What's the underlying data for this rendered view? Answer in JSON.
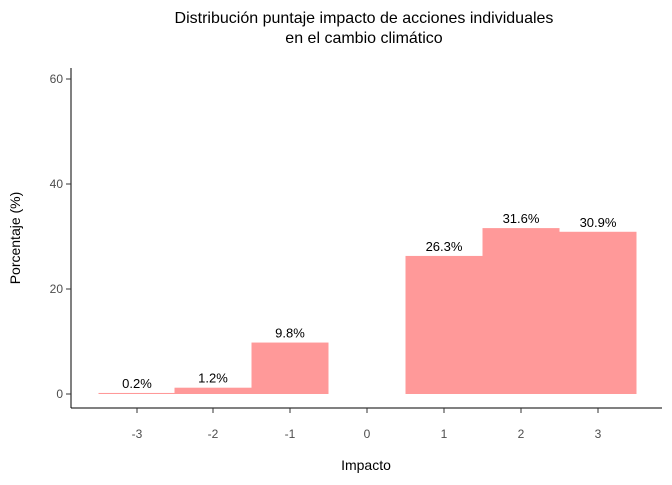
{
  "chart_data": {
    "type": "bar",
    "title_lines": [
      "Distribución puntaje impacto de acciones individuales",
      "en el cambio climático"
    ],
    "xlabel": "Impacto",
    "ylabel": "Porcentaje (%)",
    "categories": [
      -3,
      -2,
      -1,
      0,
      1,
      2,
      3
    ],
    "values": [
      0.2,
      1.2,
      9.8,
      0,
      26.3,
      31.6,
      30.9
    ],
    "data_labels": [
      "0.2%",
      "1.2%",
      "9.8%",
      "",
      "26.3%",
      "31.6%",
      "30.9%"
    ],
    "ylim": [
      0,
      60
    ],
    "yticks": [
      0,
      20,
      40,
      60
    ],
    "xlim": [
      -3.5,
      3.5
    ],
    "bar_color": "#FF9999",
    "grid": false,
    "legend": "none"
  }
}
